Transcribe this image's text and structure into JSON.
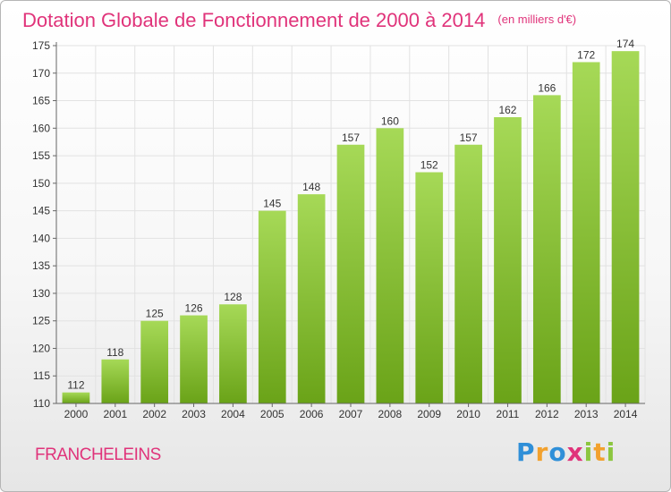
{
  "header": {
    "title": "Dotation Globale de Fonctionnement de 2000 à 2014",
    "unit_note": "(en milliers d'€)"
  },
  "footer": {
    "commune": "FRANCHELEINS",
    "logo_text": "Proxiti"
  },
  "colors": {
    "title": "#e0337a",
    "bar_light": "#a6d957",
    "bar_dark": "#6aa318",
    "grid": "#e2e2e2"
  },
  "chart_data": {
    "type": "bar",
    "categories": [
      "2000",
      "2001",
      "2002",
      "2003",
      "2004",
      "2005",
      "2006",
      "2007",
      "2008",
      "2009",
      "2010",
      "2011",
      "2012",
      "2013",
      "2014"
    ],
    "values": [
      112,
      118,
      125,
      126,
      128,
      145,
      148,
      157,
      160,
      152,
      157,
      162,
      166,
      172,
      174
    ],
    "title": "Dotation Globale de Fonctionnement de 2000 à 2014",
    "subtitle": "(en milliers d'€)",
    "xlabel": "",
    "ylabel": "",
    "ylim": [
      110,
      175
    ],
    "yticks": [
      110,
      115,
      120,
      125,
      130,
      135,
      140,
      145,
      150,
      155,
      160,
      165,
      170,
      175
    ],
    "grid": true,
    "data_labels": true
  }
}
